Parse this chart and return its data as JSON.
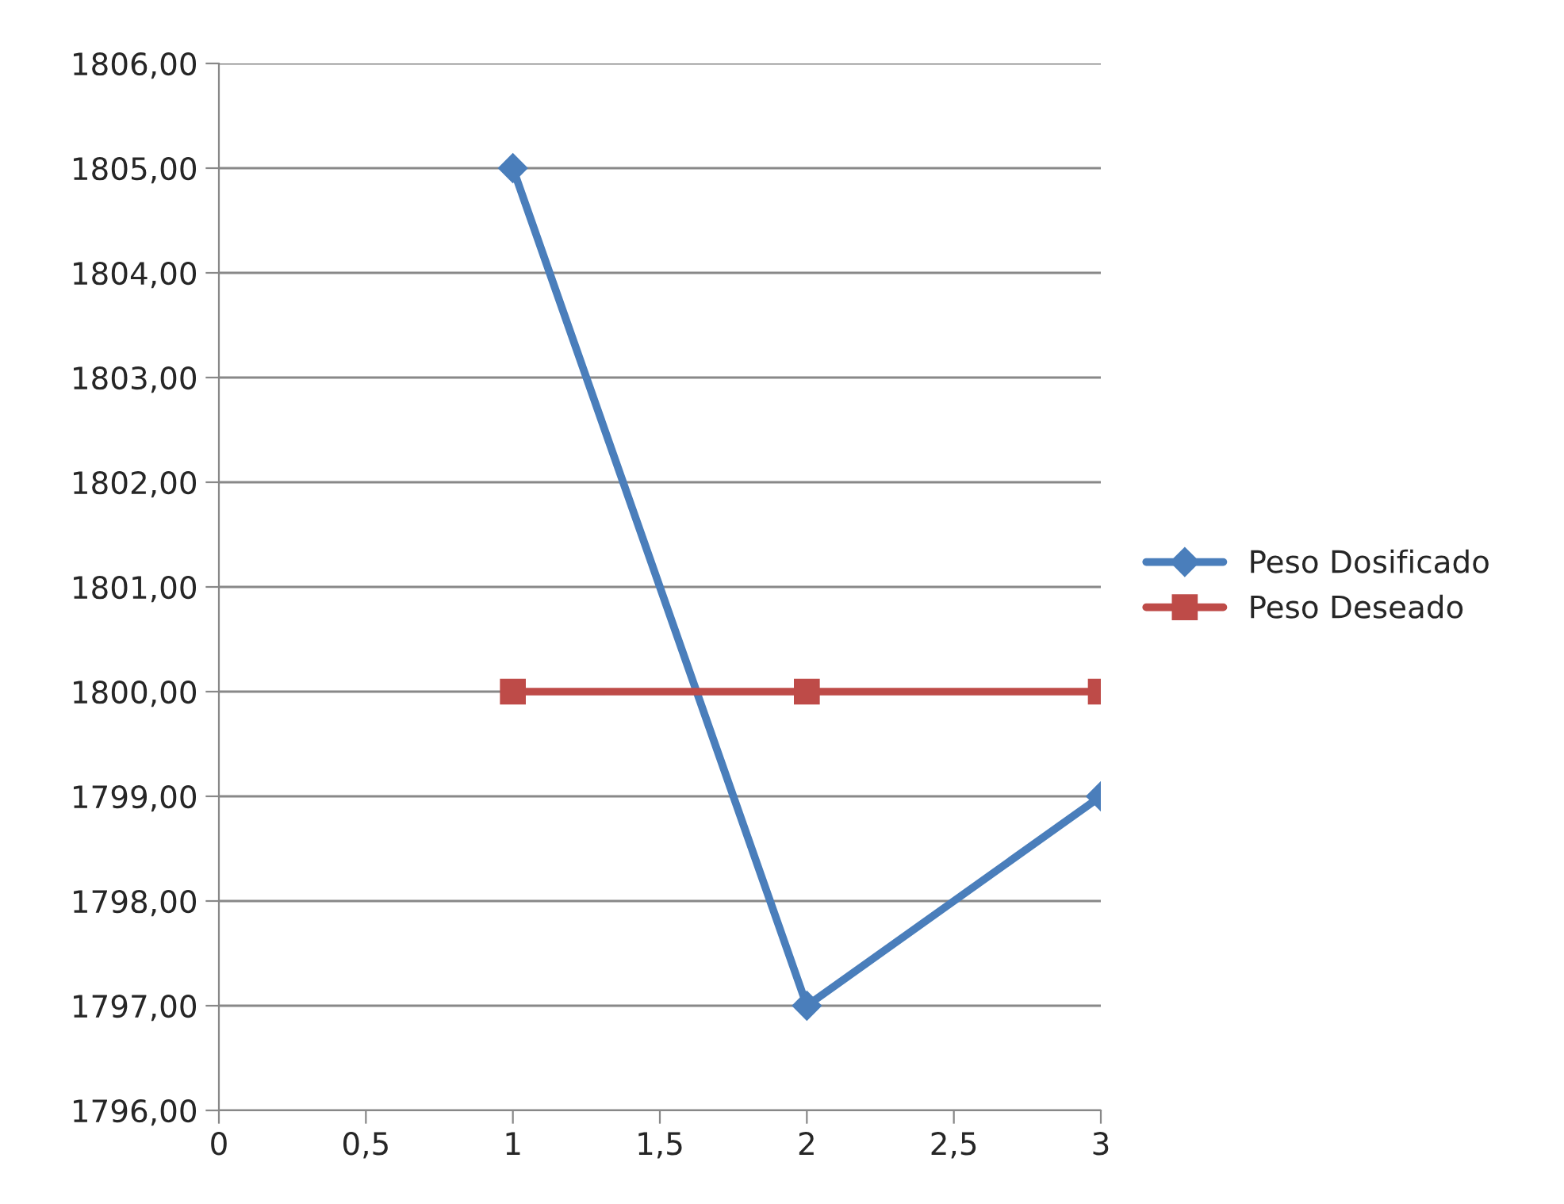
{
  "chart_data": {
    "type": "line",
    "x": [
      1,
      2,
      3
    ],
    "series": [
      {
        "name": "Peso Dosificado",
        "color": "#4a7ebb",
        "marker": "diamond",
        "values": [
          1805,
          1797,
          1799
        ]
      },
      {
        "name": "Peso Deseado",
        "color": "#be4b48",
        "marker": "square",
        "values": [
          1800,
          1800,
          1800
        ]
      }
    ],
    "xlim": [
      0,
      3
    ],
    "xticks": [
      0,
      {
        "value": 0.5,
        "label": "0,5"
      },
      1,
      {
        "value": 1.5,
        "label": "1,5"
      },
      2,
      {
        "value": 2.5,
        "label": "2,5"
      },
      3
    ],
    "ylim": [
      1796,
      1806
    ],
    "yticks": [
      {
        "value": 1796,
        "label": "1796,00"
      },
      {
        "value": 1797,
        "label": "1797,00"
      },
      {
        "value": 1798,
        "label": "1798,00"
      },
      {
        "value": 1799,
        "label": "1799,00"
      },
      {
        "value": 1800,
        "label": "1800,00"
      },
      {
        "value": 1801,
        "label": "1801,00"
      },
      {
        "value": 1802,
        "label": "1802,00"
      },
      {
        "value": 1803,
        "label": "1803,00"
      },
      {
        "value": 1804,
        "label": "1804,00"
      },
      {
        "value": 1805,
        "label": "1805,00"
      },
      {
        "value": 1806,
        "label": "1806,00"
      }
    ],
    "grid": "y",
    "legend": "right"
  }
}
